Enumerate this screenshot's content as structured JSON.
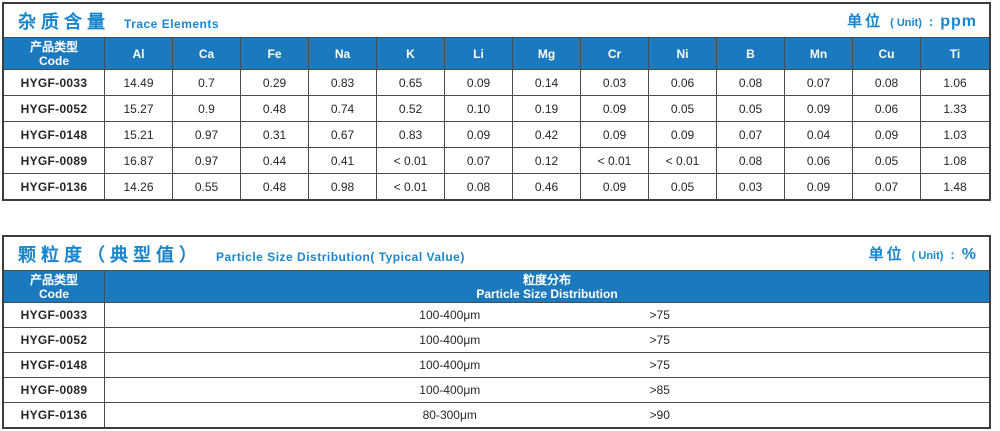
{
  "table1": {
    "title_zh": "杂质含量",
    "title_en": "Trace Elements",
    "unit": {
      "label": "单位",
      "paren": "( Unit)",
      "colon": ":",
      "value": "ppm"
    },
    "code_header": {
      "zh": "产品类型",
      "en": "Code"
    },
    "columns": [
      "Al",
      "Ca",
      "Fe",
      "Na",
      "K",
      "Li",
      "Mg",
      "Cr",
      "Ni",
      "B",
      "Mn",
      "Cu",
      "Ti"
    ],
    "rows": [
      {
        "code": "HYGF-0033",
        "values": [
          "14.49",
          "0.7",
          "0.29",
          "0.83",
          "0.65",
          "0.09",
          "0.14",
          "0.03",
          "0.06",
          "0.08",
          "0.07",
          "0.08",
          "1.06"
        ]
      },
      {
        "code": "HYGF-0052",
        "values": [
          "15.27",
          "0.9",
          "0.48",
          "0.74",
          "0.52",
          "0.10",
          "0.19",
          "0.09",
          "0.05",
          "0.05",
          "0.09",
          "0.06",
          "1.33"
        ]
      },
      {
        "code": "HYGF-0148",
        "values": [
          "15.21",
          "0.97",
          "0.31",
          "0.67",
          "0.83",
          "0.09",
          "0.42",
          "0.09",
          "0.09",
          "0.07",
          "0.04",
          "0.09",
          "1.03"
        ]
      },
      {
        "code": "HYGF-0089",
        "values": [
          "16.87",
          "0.97",
          "0.44",
          "0.41",
          "< 0.01",
          "0.07",
          "0.12",
          "< 0.01",
          "< 0.01",
          "0.08",
          "0.06",
          "0.05",
          "1.08"
        ]
      },
      {
        "code": "HYGF-0136",
        "values": [
          "14.26",
          "0.55",
          "0.48",
          "0.98",
          "< 0.01",
          "0.08",
          "0.46",
          "0.09",
          "0.05",
          "0.03",
          "0.09",
          "0.07",
          "1.48"
        ]
      }
    ]
  },
  "table2": {
    "title_zh": "颗粒度（典型值）",
    "title_en": "Particle Size Distribution( Typical Value)",
    "unit": {
      "label": "单位",
      "paren": "( Unit)",
      "colon": ":",
      "value": "%"
    },
    "code_header": {
      "zh": "产品类型",
      "en": "Code"
    },
    "dist_header": {
      "zh": "粒度分布",
      "en": "Particle Size Distribution"
    },
    "rows": [
      {
        "code": "HYGF-0033",
        "range": "100-400μm",
        "pct": ">75"
      },
      {
        "code": "HYGF-0052",
        "range": "100-400μm",
        "pct": ">75"
      },
      {
        "code": "HYGF-0148",
        "range": "100-400μm",
        "pct": ">75"
      },
      {
        "code": "HYGF-0089",
        "range": "100-400μm",
        "pct": ">85"
      },
      {
        "code": "HYGF-0136",
        "range": "80-300μm",
        "pct": ">90"
      }
    ]
  },
  "colors": {
    "header_bg": "#1b79be",
    "accent_blue": "#1a86cd",
    "grid_line": "#4c4c4c",
    "outer_border": "#3d3d3d"
  }
}
